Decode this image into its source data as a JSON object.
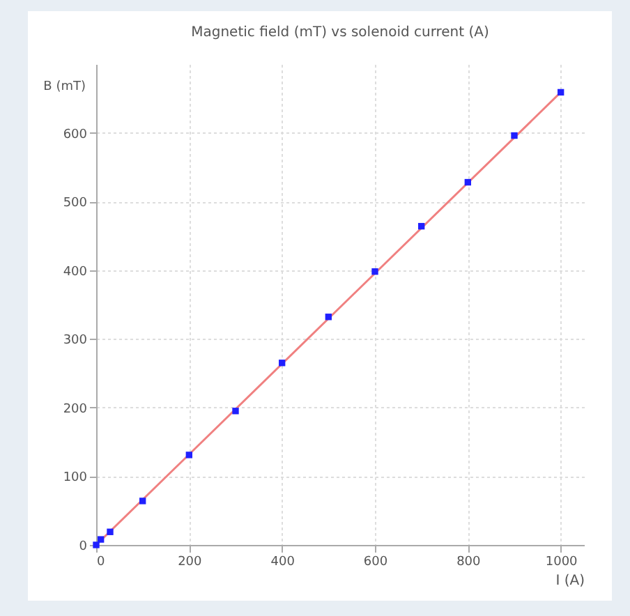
{
  "chart_data": {
    "type": "scatter",
    "title": "Magnetic field (mT) vs solenoid current (A)",
    "xlabel": "I (A)",
    "ylabel": "B (mT)",
    "x": [
      0,
      10,
      30,
      100,
      200,
      300,
      400,
      500,
      600,
      700,
      800,
      900,
      1000
    ],
    "series": [
      {
        "color": "#2020ff",
        "marker": "square",
        "values": [
          0,
          8,
          19,
          64,
          131,
          195,
          265,
          332,
          398,
          464,
          528,
          596,
          659
        ]
      },
      {
        "type": "line",
        "color": "#f08080",
        "x": [
          0,
          1000
        ],
        "values": [
          0,
          659
        ]
      }
    ],
    "xlim": [
      0,
      1050
    ],
    "ylim": [
      0,
      700
    ],
    "xticks": [
      0,
      200,
      400,
      600,
      800,
      1000
    ],
    "yticks": [
      0,
      100,
      200,
      300,
      400,
      500,
      600
    ],
    "grid": true
  }
}
